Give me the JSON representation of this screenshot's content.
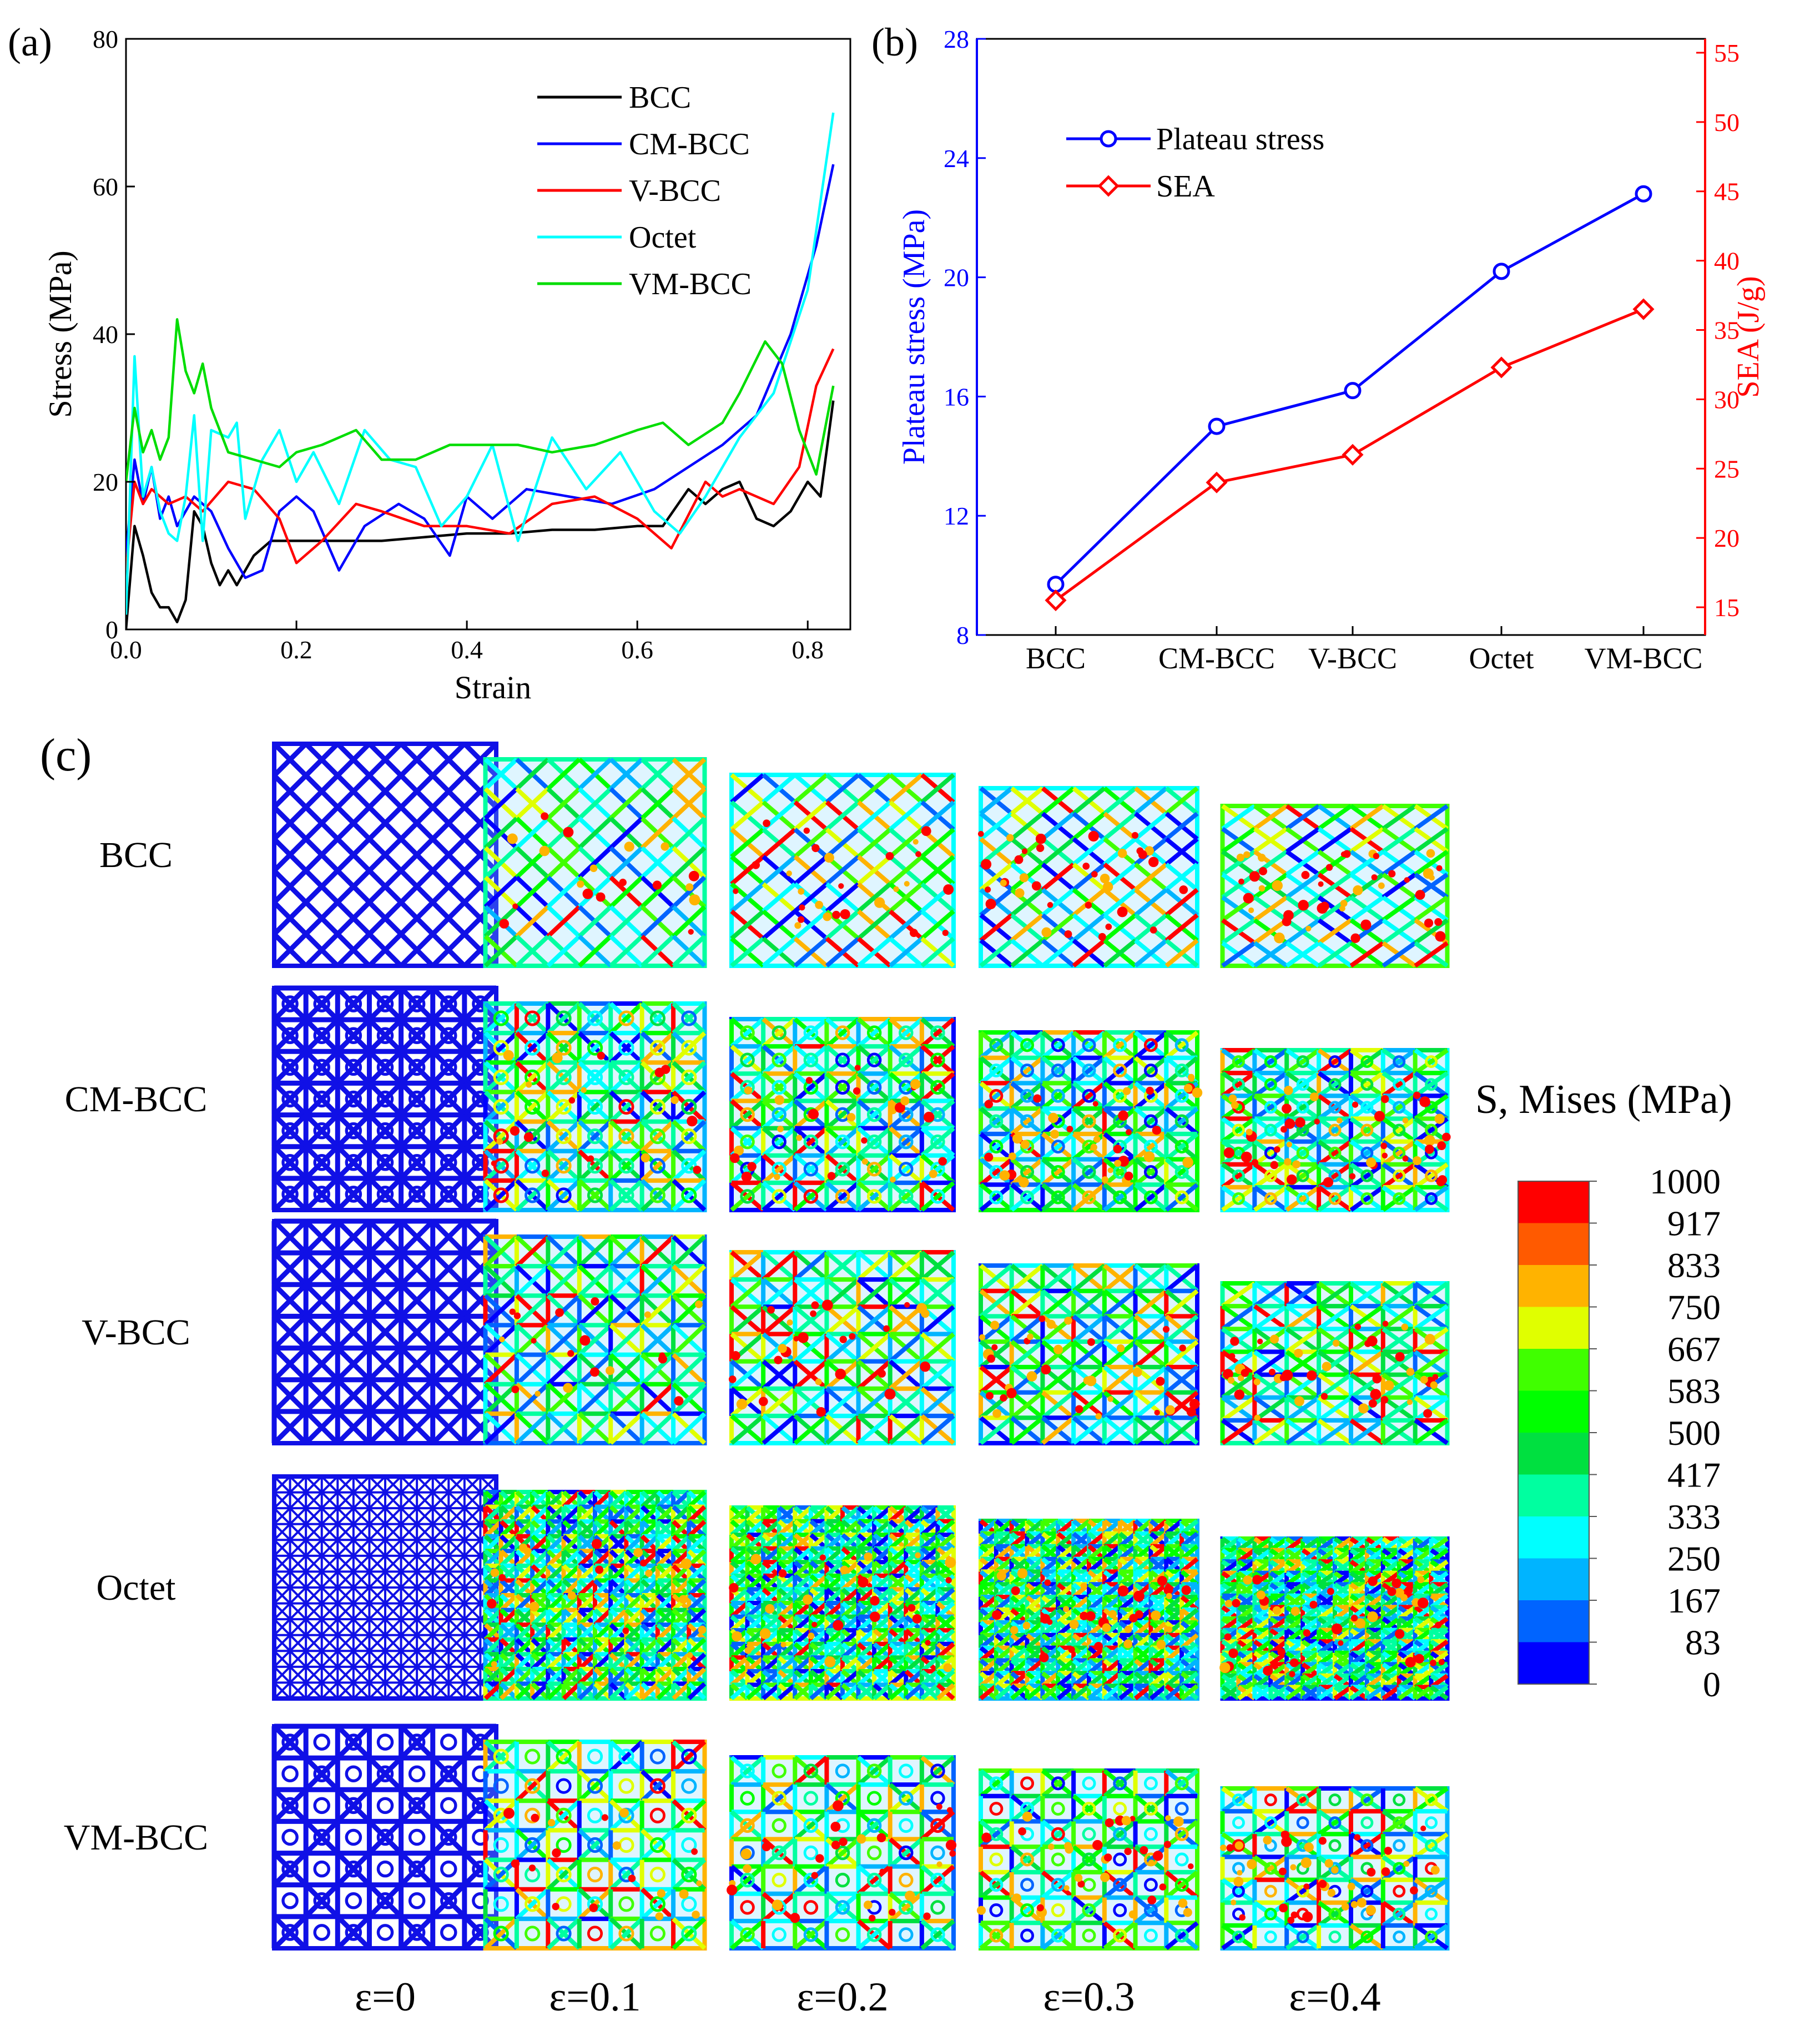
{
  "panels": {
    "a": "(a)",
    "b": "(b)",
    "c": "(c)"
  },
  "chart_data": [
    {
      "type": "line",
      "panel": "(a)",
      "xlabel": "Strain",
      "ylabel": "Stress (MPa)",
      "xlim": [
        0,
        0.85
      ],
      "ylim": [
        0,
        80
      ],
      "xticks": [
        "0.0",
        "0.2",
        "0.4",
        "0.6",
        "0.8"
      ],
      "yticks": [
        "0",
        "20",
        "40",
        "60",
        "80"
      ],
      "legend_position": "top-right",
      "series": [
        {
          "name": "BCC",
          "color": "#000000",
          "points": [
            [
              0,
              0
            ],
            [
              0.01,
              14
            ],
            [
              0.02,
              10
            ],
            [
              0.03,
              5
            ],
            [
              0.04,
              3
            ],
            [
              0.05,
              3
            ],
            [
              0.06,
              1
            ],
            [
              0.07,
              4
            ],
            [
              0.08,
              16
            ],
            [
              0.09,
              14
            ],
            [
              0.1,
              9
            ],
            [
              0.11,
              6
            ],
            [
              0.12,
              8
            ],
            [
              0.13,
              6
            ],
            [
              0.14,
              8
            ],
            [
              0.15,
              10
            ],
            [
              0.17,
              12
            ],
            [
              0.2,
              12
            ],
            [
              0.25,
              12
            ],
            [
              0.3,
              12
            ],
            [
              0.35,
              12.5
            ],
            [
              0.4,
              13
            ],
            [
              0.45,
              13
            ],
            [
              0.5,
              13.5
            ],
            [
              0.55,
              13.5
            ],
            [
              0.6,
              14
            ],
            [
              0.63,
              14
            ],
            [
              0.66,
              19
            ],
            [
              0.68,
              17
            ],
            [
              0.7,
              19
            ],
            [
              0.72,
              20
            ],
            [
              0.74,
              15
            ],
            [
              0.76,
              14
            ],
            [
              0.78,
              16
            ],
            [
              0.8,
              20
            ],
            [
              0.815,
              18
            ],
            [
              0.83,
              31
            ]
          ]
        },
        {
          "name": "CM-BCC",
          "color": "#0000ff",
          "points": [
            [
              0,
              10
            ],
            [
              0.01,
              23
            ],
            [
              0.02,
              17
            ],
            [
              0.03,
              22
            ],
            [
              0.04,
              15
            ],
            [
              0.05,
              18
            ],
            [
              0.06,
              14
            ],
            [
              0.08,
              18
            ],
            [
              0.1,
              16
            ],
            [
              0.12,
              11
            ],
            [
              0.14,
              7
            ],
            [
              0.16,
              8
            ],
            [
              0.18,
              16
            ],
            [
              0.2,
              18
            ],
            [
              0.22,
              16
            ],
            [
              0.25,
              8
            ],
            [
              0.28,
              14
            ],
            [
              0.32,
              17
            ],
            [
              0.35,
              15
            ],
            [
              0.38,
              10
            ],
            [
              0.4,
              18
            ],
            [
              0.43,
              15
            ],
            [
              0.47,
              19
            ],
            [
              0.52,
              18
            ],
            [
              0.57,
              17
            ],
            [
              0.62,
              19
            ],
            [
              0.66,
              22
            ],
            [
              0.7,
              25
            ],
            [
              0.74,
              29
            ],
            [
              0.78,
              40
            ],
            [
              0.81,
              52
            ],
            [
              0.83,
              63
            ]
          ]
        },
        {
          "name": "V-BCC",
          "color": "#ff0000",
          "points": [
            [
              0,
              8
            ],
            [
              0.01,
              20
            ],
            [
              0.02,
              17
            ],
            [
              0.03,
              19
            ],
            [
              0.05,
              17
            ],
            [
              0.07,
              18
            ],
            [
              0.09,
              16
            ],
            [
              0.12,
              20
            ],
            [
              0.15,
              19
            ],
            [
              0.18,
              15
            ],
            [
              0.2,
              9
            ],
            [
              0.23,
              12
            ],
            [
              0.27,
              17
            ],
            [
              0.3,
              16
            ],
            [
              0.35,
              14
            ],
            [
              0.4,
              14
            ],
            [
              0.45,
              13
            ],
            [
              0.5,
              17
            ],
            [
              0.55,
              18
            ],
            [
              0.6,
              15
            ],
            [
              0.64,
              11
            ],
            [
              0.68,
              20
            ],
            [
              0.7,
              18
            ],
            [
              0.72,
              19
            ],
            [
              0.76,
              17
            ],
            [
              0.79,
              22
            ],
            [
              0.81,
              33
            ],
            [
              0.83,
              38
            ]
          ]
        },
        {
          "name": "Octet",
          "color": "#00ffff",
          "points": [
            [
              0,
              2
            ],
            [
              0.01,
              37
            ],
            [
              0.02,
              18
            ],
            [
              0.03,
              22
            ],
            [
              0.04,
              16
            ],
            [
              0.05,
              13
            ],
            [
              0.06,
              12
            ],
            [
              0.07,
              18
            ],
            [
              0.08,
              29
            ],
            [
              0.09,
              12
            ],
            [
              0.1,
              27
            ],
            [
              0.12,
              26
            ],
            [
              0.13,
              28
            ],
            [
              0.14,
              15
            ],
            [
              0.16,
              23
            ],
            [
              0.18,
              27
            ],
            [
              0.2,
              20
            ],
            [
              0.22,
              24
            ],
            [
              0.25,
              17
            ],
            [
              0.28,
              27
            ],
            [
              0.31,
              23
            ],
            [
              0.34,
              22
            ],
            [
              0.37,
              14
            ],
            [
              0.4,
              18
            ],
            [
              0.43,
              25
            ],
            [
              0.46,
              12
            ],
            [
              0.5,
              26
            ],
            [
              0.54,
              19
            ],
            [
              0.58,
              24
            ],
            [
              0.62,
              16
            ],
            [
              0.65,
              13
            ],
            [
              0.68,
              18
            ],
            [
              0.72,
              26
            ],
            [
              0.76,
              32
            ],
            [
              0.8,
              46
            ],
            [
              0.83,
              70
            ]
          ]
        },
        {
          "name": "VM-BCC",
          "color": "#00dd00",
          "points": [
            [
              0,
              20
            ],
            [
              0.01,
              30
            ],
            [
              0.02,
              24
            ],
            [
              0.03,
              27
            ],
            [
              0.04,
              23
            ],
            [
              0.05,
              26
            ],
            [
              0.06,
              42
            ],
            [
              0.07,
              35
            ],
            [
              0.08,
              32
            ],
            [
              0.09,
              36
            ],
            [
              0.1,
              30
            ],
            [
              0.12,
              24
            ],
            [
              0.15,
              23
            ],
            [
              0.18,
              22
            ],
            [
              0.2,
              24
            ],
            [
              0.23,
              25
            ],
            [
              0.27,
              27
            ],
            [
              0.3,
              23
            ],
            [
              0.34,
              23
            ],
            [
              0.38,
              25
            ],
            [
              0.42,
              25
            ],
            [
              0.46,
              25
            ],
            [
              0.5,
              24
            ],
            [
              0.55,
              25
            ],
            [
              0.6,
              27
            ],
            [
              0.63,
              28
            ],
            [
              0.66,
              25
            ],
            [
              0.7,
              28
            ],
            [
              0.72,
              32
            ],
            [
              0.75,
              39
            ],
            [
              0.77,
              36
            ],
            [
              0.79,
              27
            ],
            [
              0.81,
              21
            ],
            [
              0.83,
              33
            ]
          ]
        }
      ]
    },
    {
      "type": "line",
      "panel": "(b)",
      "categories": [
        "BCC",
        "CM-BCC",
        "V-BCC",
        "Octet",
        "VM-BCC"
      ],
      "ylabel": "Plateau stress (MPa)",
      "ylim": [
        8,
        28
      ],
      "yticks": [
        "8",
        "12",
        "16",
        "20",
        "24",
        "28"
      ],
      "y2label": "SEA (J/g)",
      "y2lim": [
        13,
        56
      ],
      "y2ticks": [
        "15",
        "20",
        "25",
        "30",
        "35",
        "40",
        "45",
        "50",
        "55"
      ],
      "legend_position": "top-left",
      "series": [
        {
          "name": "Plateau stress",
          "axis": "left",
          "color": "#0000ff",
          "marker": "circle",
          "values": [
            9.7,
            15.0,
            16.2,
            20.2,
            22.8
          ]
        },
        {
          "name": "SEA",
          "axis": "right",
          "color": "#ff0000",
          "marker": "diamond",
          "values": [
            15.5,
            24.0,
            26.0,
            32.3,
            36.5
          ]
        }
      ]
    }
  ],
  "panel_c": {
    "rows": [
      "BCC",
      "CM-BCC",
      "V-BCC",
      "Octet",
      "VM-BCC"
    ],
    "columns": [
      "ε=0",
      "ε=0.1",
      "ε=0.2",
      "ε=0.3",
      "ε=0.4"
    ],
    "colorbar": {
      "title": "S, Mises (MPa)",
      "labels": [
        "1000",
        "917",
        "833",
        "750",
        "667",
        "583",
        "500",
        "417",
        "333",
        "250",
        "167",
        "83",
        "0"
      ],
      "colors": [
        "#ff0000",
        "#ff5a00",
        "#ffb300",
        "#e0ff00",
        "#40ff00",
        "#00ff00",
        "#00e040",
        "#00ffa0",
        "#00ffff",
        "#00b4ff",
        "#0064ff",
        "#0000ff"
      ]
    }
  }
}
